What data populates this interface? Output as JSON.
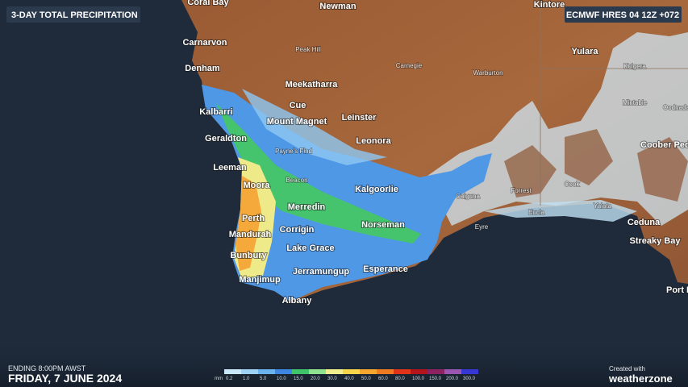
{
  "header": {
    "title": "3-DAY TOTAL PRECIPITATION",
    "model": "ECMWF HRES 04 12Z +072"
  },
  "places": [
    "Coral Bay",
    "Newman",
    "Kintore",
    "Carnarvon",
    "Peak Hill",
    "Carnegie",
    "Warburton",
    "Yulara",
    "Denham",
    "Kulgera",
    "Meekatharra",
    "Cue",
    "Kalbarri",
    "Mount Magnet",
    "Leinster",
    "Mintabie",
    "Oodnadatta",
    "Geraldton",
    "Leonora",
    "Payne's Find",
    "Coober Pedy",
    "Leeman",
    "Beacon",
    "Moora",
    "Kalgoorlie",
    "Caiguna",
    "Forrest",
    "Cook",
    "Eucla",
    "Yalata",
    "Perth",
    "Merredin",
    "Norseman",
    "Ceduna",
    "Mandurah",
    "Corrigin",
    "Eyre",
    "Streaky Bay",
    "Lake Grace",
    "Bunbury",
    "Esperance",
    "Jerramungup",
    "Manjimup",
    "Port Lincoln",
    "Albany"
  ],
  "legend": {
    "unit": "mm",
    "labels": [
      "0.2",
      "1.0",
      "5.0",
      "10.0",
      "15.0",
      "20.0",
      "30.0",
      "40.0",
      "50.0",
      "60.0",
      "80.0",
      "100.0",
      "150.0",
      "200.0",
      "300.0"
    ],
    "colors": [
      "#c9e9fb",
      "#9fd3f5",
      "#6bb3ee",
      "#3d86e2",
      "#3fc46a",
      "#8fe28f",
      "#f2ef8f",
      "#f6d54a",
      "#f5a62e",
      "#f07a1f",
      "#df3419",
      "#b4151c",
      "#8c2262",
      "#9a57b2",
      "#3737d6"
    ]
  },
  "footer": {
    "ending": "ENDING 8:00PM AWST",
    "date": "FRIDAY, 7 JUNE 2024",
    "credit": "Created with",
    "brand": "weatherzone"
  }
}
